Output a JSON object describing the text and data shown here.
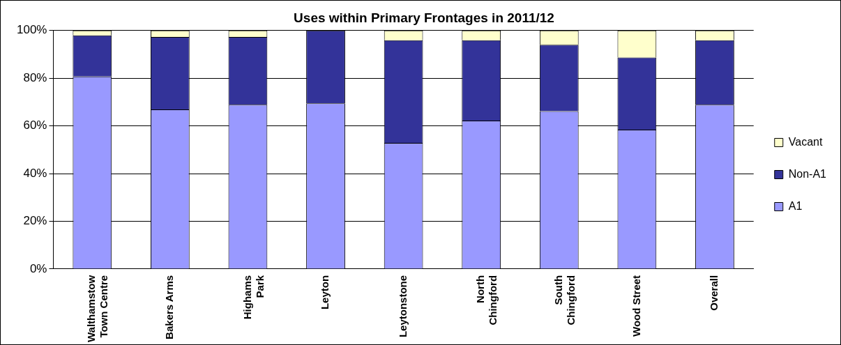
{
  "chart_data": {
    "type": "bar",
    "title": "Uses within Primary Frontages in 2011/12",
    "stacked": true,
    "categories": [
      "Walthamstow\nTown Centre",
      "Bakers Arms",
      "Highams\nPark",
      "Leyton",
      "Leytonstone",
      "North\nChingford",
      "South\nChingford",
      "Wood Street",
      "Overall"
    ],
    "series": [
      {
        "name": "A1",
        "color": "#9999ff",
        "values": [
          80.7,
          66.9,
          68.9,
          69.5,
          52.9,
          62.2,
          66.2,
          58.4,
          68.9
        ]
      },
      {
        "name": "Non-A1",
        "color": "#333399",
        "values": [
          17.3,
          30.4,
          28.4,
          30.5,
          43.0,
          33.7,
          27.8,
          30.3,
          27.0
        ]
      },
      {
        "name": "Vacant",
        "color": "#ffffcc",
        "values": [
          2.0,
          2.7,
          2.7,
          0,
          4.1,
          4.1,
          6.0,
          11.3,
          4.1
        ]
      }
    ],
    "ylim": [
      0,
      100
    ],
    "yticks": [
      {
        "value": 0,
        "label": "0%"
      },
      {
        "value": 20,
        "label": "20%"
      },
      {
        "value": 40,
        "label": "40%"
      },
      {
        "value": 60,
        "label": "60%"
      },
      {
        "value": 80,
        "label": "80%"
      },
      {
        "value": 100,
        "label": "100%"
      }
    ],
    "grid": "y",
    "legend": "right"
  }
}
